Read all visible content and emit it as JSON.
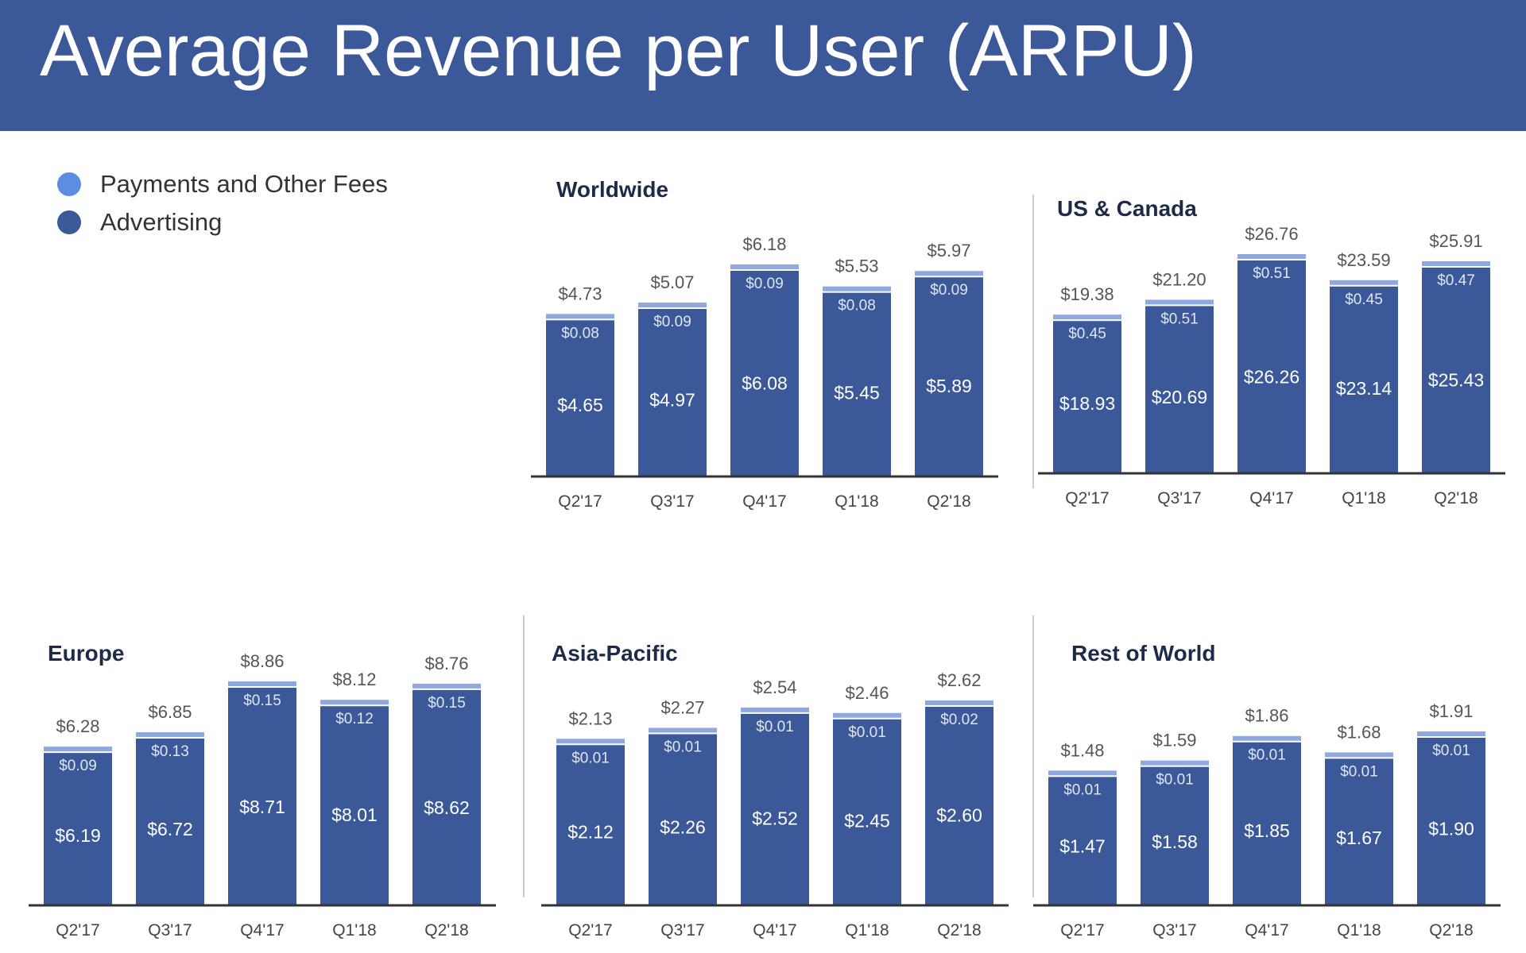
{
  "title": "Average Revenue per User (ARPU)",
  "legend": [
    {
      "label": "Payments and Other Fees",
      "color": "#5b8de0"
    },
    {
      "label": "Advertising",
      "color": "#3b5998"
    }
  ],
  "colors": {
    "header": "#3b5998",
    "advertising": "#3b5998",
    "payments": "#8fa8e0"
  },
  "chart_data": [
    {
      "type": "bar",
      "stacked": true,
      "title": "Worldwide",
      "categories": [
        "Q2'17",
        "Q3'17",
        "Q4'17",
        "Q1'18",
        "Q2'18"
      ],
      "totals": [
        "$4.73",
        "$5.07",
        "$6.18",
        "$5.53",
        "$5.97"
      ],
      "series": [
        {
          "name": "Advertising",
          "values": [
            4.65,
            4.97,
            6.08,
            5.45,
            5.89
          ],
          "labels": [
            "$4.65",
            "$4.97",
            "$6.08",
            "$5.45",
            "$5.89"
          ]
        },
        {
          "name": "Payments and Other Fees",
          "values": [
            0.08,
            0.09,
            0.09,
            0.08,
            0.09
          ],
          "labels": [
            "$0.08",
            "$0.09",
            "$0.09",
            "$0.08",
            "$0.09"
          ]
        }
      ]
    },
    {
      "type": "bar",
      "stacked": true,
      "title": "US & Canada",
      "categories": [
        "Q2'17",
        "Q3'17",
        "Q4'17",
        "Q1'18",
        "Q2'18"
      ],
      "totals": [
        "$19.38",
        "$21.20",
        "$26.76",
        "$23.59",
        "$25.91"
      ],
      "series": [
        {
          "name": "Advertising",
          "values": [
            18.93,
            20.69,
            26.26,
            23.14,
            25.43
          ],
          "labels": [
            "$18.93",
            "$20.69",
            "$26.26",
            "$23.14",
            "$25.43"
          ]
        },
        {
          "name": "Payments and Other Fees",
          "values": [
            0.45,
            0.51,
            0.51,
            0.45,
            0.47
          ],
          "labels": [
            "$0.45",
            "$0.51",
            "$0.51",
            "$0.45",
            "$0.47"
          ]
        }
      ]
    },
    {
      "type": "bar",
      "stacked": true,
      "title": "Europe",
      "categories": [
        "Q2'17",
        "Q3'17",
        "Q4'17",
        "Q1'18",
        "Q2'18"
      ],
      "totals": [
        "$6.28",
        "$6.85",
        "$8.86",
        "$8.12",
        "$8.76"
      ],
      "series": [
        {
          "name": "Advertising",
          "values": [
            6.19,
            6.72,
            8.71,
            8.01,
            8.62
          ],
          "labels": [
            "$6.19",
            "$6.72",
            "$8.71",
            "$8.01",
            "$8.62"
          ]
        },
        {
          "name": "Payments and Other Fees",
          "values": [
            0.09,
            0.13,
            0.15,
            0.12,
            0.15
          ],
          "labels": [
            "$0.09",
            "$0.13",
            "$0.15",
            "$0.12",
            "$0.15"
          ]
        }
      ]
    },
    {
      "type": "bar",
      "stacked": true,
      "title": "Asia-Pacific",
      "categories": [
        "Q2'17",
        "Q3'17",
        "Q4'17",
        "Q1'18",
        "Q2'18"
      ],
      "totals": [
        "$2.13",
        "$2.27",
        "$2.54",
        "$2.46",
        "$2.62"
      ],
      "series": [
        {
          "name": "Advertising",
          "values": [
            2.12,
            2.26,
            2.52,
            2.45,
            2.6
          ],
          "labels": [
            "$2.12",
            "$2.26",
            "$2.52",
            "$2.45",
            "$2.60"
          ]
        },
        {
          "name": "Payments and Other Fees",
          "values": [
            0.01,
            0.01,
            0.01,
            0.01,
            0.02
          ],
          "labels": [
            "$0.01",
            "$0.01",
            "$0.01",
            "$0.01",
            "$0.02"
          ]
        }
      ]
    },
    {
      "type": "bar",
      "stacked": true,
      "title": "Rest of World",
      "categories": [
        "Q2'17",
        "Q3'17",
        "Q4'17",
        "Q1'18",
        "Q2'18"
      ],
      "totals": [
        "$1.48",
        "$1.59",
        "$1.86",
        "$1.68",
        "$1.91"
      ],
      "series": [
        {
          "name": "Advertising",
          "values": [
            1.47,
            1.58,
            1.85,
            1.67,
            1.9
          ],
          "labels": [
            "$1.47",
            "$1.58",
            "$1.85",
            "$1.67",
            "$1.90"
          ]
        },
        {
          "name": "Payments and Other Fees",
          "values": [
            0.01,
            0.01,
            0.01,
            0.01,
            0.01
          ],
          "labels": [
            "$0.01",
            "$0.01",
            "$0.01",
            "$0.01",
            "$0.01"
          ]
        }
      ]
    }
  ]
}
